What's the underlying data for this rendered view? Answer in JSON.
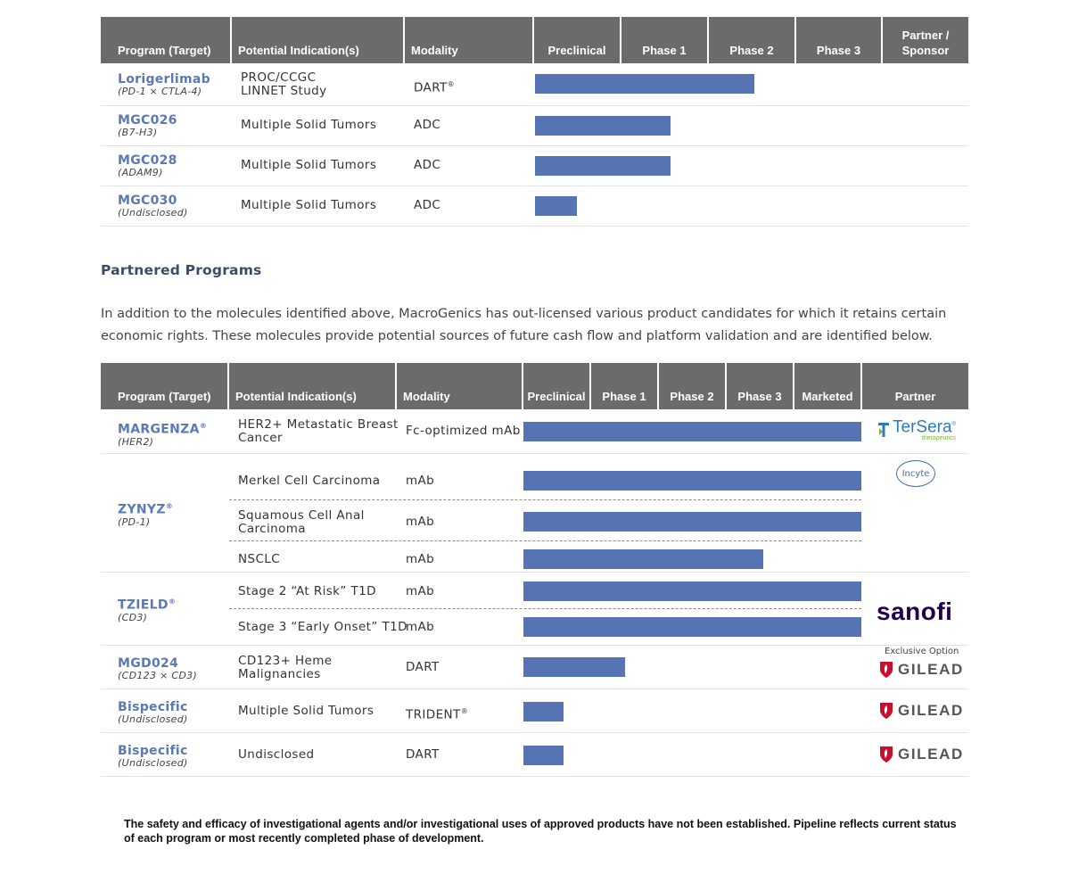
{
  "table1": {
    "headers": [
      "Program (Target)",
      "Potential Indication(s)",
      "Modality",
      "Preclinical",
      "Phase 1",
      "Phase 2",
      "Phase 3",
      "Partner / Sponsor"
    ],
    "rows": [
      {
        "name": "Lorigerlimab",
        "target": "(PD-1 × CTLA-4)",
        "indication_l1": "PROC/CCGC",
        "indication_l2": "LINNET Study",
        "modality": "DART",
        "modality_sup": "®",
        "progress_fraction": 0.63
      },
      {
        "name": "MGC026",
        "target": "(B7-H3)",
        "indication": "Multiple Solid Tumors",
        "modality": "ADC",
        "progress_fraction": 0.39
      },
      {
        "name": "MGC028",
        "target": "(ADAM9)",
        "indication": "Multiple Solid Tumors",
        "modality": "ADC",
        "progress_fraction": 0.39
      },
      {
        "name": "MGC030",
        "target": "(Undisclosed)",
        "indication": "Multiple Solid Tumors",
        "modality": "ADC",
        "progress_fraction": 0.12
      }
    ]
  },
  "partnered": {
    "title": "Partnered Programs",
    "paragraph": "In addition to the molecules identified above, MacroGenics has out-licensed various product candidates for which it retains certain economic rights. These molecules provide potential sources of future cash flow and platform validation and are identified below."
  },
  "table2": {
    "headers": [
      "Program (Target)",
      "Potential Indication(s)",
      "Modality",
      "Preclinical",
      "Phase 1",
      "Phase 2",
      "Phase 3",
      "Marketed",
      "Partner"
    ],
    "programs": [
      {
        "name": "MARGENZA",
        "sup": "®",
        "target": "(HER2)"
      },
      {
        "name": "ZYNYZ",
        "sup": "®",
        "target": "(PD-1)"
      },
      {
        "name": "TZIELD",
        "sup": "®",
        "target": "(CD3)"
      },
      {
        "name": "MGD024",
        "sup": "",
        "target": "(CD123 × CD3)"
      },
      {
        "name": "Bispecific",
        "sup": "",
        "target": "(Undisclosed)"
      },
      {
        "name": "Bispecific",
        "sup": "",
        "target": "(Undisclosed)"
      }
    ],
    "rows": [
      {
        "indication_l1": "HER2+ Metastatic Breast",
        "indication_l2": "Cancer",
        "modality": "Fc-optimized mAb",
        "progress_fraction": 1.0
      },
      {
        "indication": "Merkel Cell Carcinoma",
        "modality": "mAb",
        "progress_fraction": 1.0
      },
      {
        "indication_l1": "Squamous Cell Anal",
        "indication_l2": "Carcinoma",
        "modality": "mAb",
        "progress_fraction": 1.0
      },
      {
        "indication": "NSCLC",
        "modality": "mAb",
        "progress_fraction": 0.71
      },
      {
        "indication": "Stage 2 “At Risk” T1D",
        "modality": "mAb",
        "progress_fraction": 1.0
      },
      {
        "indication": "Stage 3 “Early Onset” T1D",
        "modality": "mAb",
        "progress_fraction": 1.0
      },
      {
        "indication_l1": "CD123+ Heme",
        "indication_l2": "Malignancies",
        "modality": "DART",
        "progress_fraction": 0.3
      },
      {
        "indication": "Multiple Solid Tumors",
        "modality": "TRIDENT",
        "modality_sup": "®",
        "progress_fraction": 0.12
      },
      {
        "indication": "Undisclosed",
        "modality": "DART",
        "progress_fraction": 0.12
      }
    ],
    "partners": {
      "tersera_name": "TerSera",
      "tersera_reg": "®",
      "tersera_sub": "therapeutics",
      "incyte": "Incyte",
      "sanofi": "sanofi",
      "exclusive_option": "Exclusive Option",
      "gilead": "GILEAD"
    }
  },
  "footnote": "The safety and efficacy of investigational agents and/or investigational uses of approved products have not been established. Pipeline reflects current status of each program or most recently completed phase of development.",
  "colors": {
    "bar": "#5674b3",
    "header": "#6b6b6b",
    "program": "#5b79b3"
  }
}
